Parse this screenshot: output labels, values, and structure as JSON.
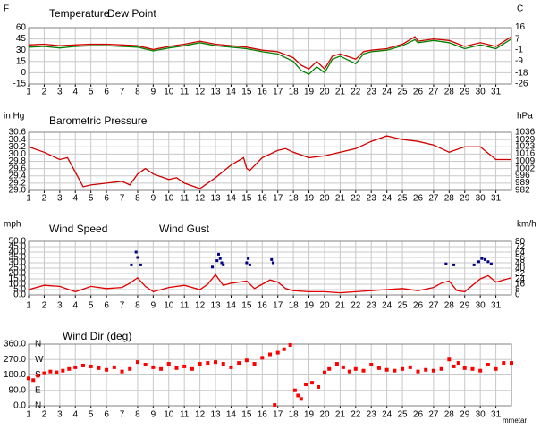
{
  "chart_data": [
    {
      "type": "line",
      "ylabel": "F",
      "y2label": "C",
      "xlim": [
        1,
        32
      ],
      "xticks": [
        1,
        2,
        3,
        4,
        5,
        6,
        7,
        8,
        9,
        10,
        11,
        12,
        13,
        14,
        15,
        16,
        17,
        18,
        19,
        20,
        21,
        22,
        23,
        24,
        25,
        26,
        27,
        28,
        29,
        30,
        31
      ],
      "ylim": [
        -15,
        60
      ],
      "yticks": [
        60,
        45,
        30,
        15,
        0,
        -15
      ],
      "y2lim": [
        -26.1,
        15.6
      ],
      "y2ticks": [
        16,
        7,
        -1,
        -9,
        -18,
        -26
      ],
      "grid": true,
      "series": [
        {
          "name": "Temperature",
          "color": "#d00000",
          "style": "line",
          "x": [
            1,
            2,
            3,
            4,
            5,
            6,
            7,
            8,
            9,
            10,
            11,
            12,
            13,
            14,
            15,
            16,
            17,
            18,
            18.5,
            19,
            19.5,
            20,
            20.5,
            21,
            22,
            22.5,
            23,
            24,
            25,
            25.8,
            26,
            27,
            28,
            29,
            30,
            31,
            32
          ],
          "values": [
            37,
            38,
            36,
            37,
            38,
            38,
            37,
            36,
            31,
            35,
            38,
            42,
            38,
            36,
            34,
            30,
            28,
            20,
            10,
            5,
            15,
            5,
            22,
            25,
            18,
            28,
            30,
            32,
            38,
            48,
            42,
            45,
            43,
            35,
            40,
            35,
            48
          ]
        },
        {
          "name": "Dew Point",
          "color": "#008000",
          "style": "line",
          "x": [
            1,
            2,
            3,
            4,
            5,
            6,
            7,
            8,
            9,
            10,
            11,
            12,
            13,
            14,
            15,
            16,
            17,
            18,
            18.5,
            19,
            19.5,
            20,
            20.5,
            21,
            22,
            22.5,
            23,
            24,
            25,
            25.8,
            26,
            27,
            28,
            29,
            30,
            31,
            32
          ],
          "values": [
            34,
            35,
            33,
            35,
            36,
            36,
            35,
            34,
            29,
            33,
            36,
            40,
            36,
            34,
            32,
            28,
            25,
            15,
            3,
            -2,
            8,
            0,
            18,
            22,
            12,
            25,
            28,
            30,
            36,
            44,
            40,
            43,
            40,
            32,
            37,
            32,
            45
          ]
        }
      ]
    },
    {
      "type": "line",
      "ylabel": "in Hg",
      "y2label": "hPa",
      "xlim": [
        1,
        32
      ],
      "xticks": [
        1,
        2,
        3,
        4,
        5,
        6,
        7,
        8,
        9,
        10,
        11,
        12,
        13,
        14,
        15,
        16,
        17,
        18,
        19,
        20,
        21,
        22,
        23,
        24,
        25,
        26,
        27,
        28,
        29,
        30,
        31
      ],
      "ylim": [
        29,
        30.6
      ],
      "yticks": [
        30.6,
        30.4,
        30.2,
        {
          "value": 30,
          "label": "30.0"
        },
        29.8,
        29.6,
        29.4,
        29.2,
        {
          "value": 29,
          "label": "29.0"
        }
      ],
      "y2lim": [
        982,
        1036
      ],
      "y2ticks": [
        1036,
        1029,
        1023,
        1016,
        1009,
        1002,
        996,
        989,
        982
      ],
      "grid": true,
      "series": [
        {
          "name": "Barometric Pressure",
          "color": "#d00000",
          "style": "line",
          "x": [
            1,
            2,
            3,
            3.5,
            4,
            4.5,
            5,
            6,
            7,
            7.5,
            8,
            8.5,
            9,
            10,
            10.5,
            11,
            12,
            13,
            14,
            14.8,
            15,
            15.2,
            16,
            17,
            17.5,
            18,
            19,
            20,
            21,
            22,
            23,
            24,
            24.5,
            25,
            26,
            27,
            28,
            29,
            30,
            31,
            32
          ],
          "values": [
            30.2,
            30.05,
            29.85,
            29.9,
            29.5,
            29.1,
            29.15,
            29.2,
            29.25,
            29.15,
            29.45,
            29.6,
            29.45,
            29.3,
            29.35,
            29.2,
            29.05,
            29.35,
            29.7,
            29.9,
            29.6,
            29.55,
            29.9,
            30.1,
            30.15,
            30.05,
            29.9,
            29.95,
            30.05,
            30.15,
            30.35,
            30.5,
            30.45,
            30.4,
            30.35,
            30.25,
            30.05,
            30.2,
            30.2,
            29.85,
            29.85
          ]
        }
      ]
    },
    {
      "type": "line",
      "ylabel": "mph",
      "y2label": "km/h",
      "xlim": [
        1,
        32
      ],
      "xticks": [
        1,
        2,
        3,
        4,
        5,
        6,
        7,
        8,
        9,
        10,
        11,
        12,
        13,
        14,
        15,
        16,
        17,
        18,
        19,
        20,
        21,
        22,
        23,
        24,
        25,
        26,
        27,
        28,
        29,
        30,
        31
      ],
      "ylim": [
        0,
        50
      ],
      "yticks": [
        {
          "value": 50,
          "label": "50.0"
        },
        {
          "value": 45,
          "label": "45.0"
        },
        {
          "value": 40,
          "label": "40.0"
        },
        {
          "value": 35,
          "label": "35.0"
        },
        {
          "value": 30,
          "label": "30.0"
        },
        {
          "value": 25,
          "label": "25.0"
        },
        {
          "value": 20,
          "label": "20.0"
        },
        {
          "value": 15,
          "label": "15.0"
        },
        {
          "value": 10,
          "label": "10.0"
        },
        {
          "value": 5,
          "label": "5.0"
        },
        {
          "value": 0,
          "label": "0.0"
        }
      ],
      "y2lim": [
        0,
        80.5
      ],
      "y2ticks": [
        80,
        72,
        64,
        56,
        48,
        40,
        32,
        24,
        16,
        8,
        0
      ],
      "grid": true,
      "series": [
        {
          "name": "Wind Speed",
          "color": "#e00000",
          "style": "line",
          "x": [
            1,
            2,
            3,
            4,
            5,
            6,
            7,
            7.5,
            8,
            8.5,
            9,
            10,
            11,
            12,
            12.5,
            13,
            13.5,
            14,
            15,
            15.5,
            16,
            16.5,
            17,
            17.5,
            18,
            19,
            20,
            21,
            22,
            23,
            24,
            25,
            26,
            27,
            27.5,
            28,
            28.5,
            29,
            30,
            30.5,
            31,
            32
          ],
          "values": [
            5,
            9,
            8,
            3,
            8,
            6,
            7,
            11,
            16,
            8,
            3,
            7,
            9,
            5,
            10,
            19,
            9,
            11,
            13,
            6,
            10,
            14,
            12,
            6,
            4,
            3,
            3,
            2,
            3,
            4,
            5,
            6,
            4,
            7,
            11,
            13,
            4,
            3,
            15,
            18,
            12,
            16
          ]
        },
        {
          "name": "Wind Gust",
          "color": "#000080",
          "style": "points",
          "x": [
            7.6,
            7.9,
            8.0,
            8.2,
            12.8,
            13.1,
            13.2,
            13.3,
            13.4,
            13.5,
            15.0,
            15.1,
            15.2,
            16.6,
            16.7,
            27.8,
            28.3,
            29.6,
            29.9,
            30.1,
            30.3,
            30.5,
            30.7
          ],
          "values": [
            28,
            40,
            35,
            28,
            26,
            32,
            38,
            34,
            30,
            28,
            30,
            34,
            28,
            33,
            30,
            29,
            28,
            28,
            31,
            34,
            33,
            31,
            29
          ]
        }
      ]
    },
    {
      "type": "scatter",
      "footer": "mmetar",
      "xlim": [
        1,
        32
      ],
      "xticks": [
        1,
        2,
        3,
        4,
        5,
        6,
        7,
        8,
        9,
        10,
        11,
        12,
        13,
        14,
        15,
        16,
        17,
        18,
        19,
        20,
        21,
        22,
        23,
        24,
        25,
        26,
        27,
        28,
        29,
        30,
        31
      ],
      "ylim": [
        0,
        360
      ],
      "yticks": [
        {
          "value": 360,
          "label": "360.0"
        },
        {
          "value": 270,
          "label": "270.0"
        },
        {
          "value": 180,
          "label": "180.0"
        },
        {
          "value": 90,
          "label": "90.0"
        },
        {
          "value": 0,
          "label": "0.0"
        }
      ],
      "compass": [
        {
          "value": 360,
          "label": "N"
        },
        {
          "value": 270,
          "label": "W"
        },
        {
          "value": 180,
          "label": "S"
        },
        {
          "value": 90,
          "label": "E"
        },
        {
          "value": 0,
          "label": "N"
        }
      ],
      "grid": true,
      "series": [
        {
          "name": "Wind Dir (deg)",
          "color": "#ff0000",
          "style": "points",
          "x": [
            1,
            1.3,
            1.6,
            2,
            2.4,
            2.8,
            3.2,
            3.6,
            4,
            4.5,
            5,
            5.5,
            6,
            6.5,
            7,
            7.5,
            8,
            8.5,
            9,
            9.5,
            10,
            10.5,
            11,
            11.5,
            12,
            12.5,
            13,
            13.5,
            14,
            14.5,
            15,
            15.5,
            16,
            16.5,
            16.8,
            17,
            17.4,
            17.8,
            18.1,
            18.3,
            18.5,
            18.8,
            19.2,
            19.6,
            20,
            20.3,
            20.8,
            21.2,
            21.6,
            22,
            22.5,
            23,
            23.5,
            24,
            24.5,
            25,
            25.5,
            26,
            26.5,
            27,
            27.5,
            28,
            28.3,
            28.6,
            29,
            29.5,
            30,
            30.5,
            31,
            31.5,
            32
          ],
          "values": [
            160,
            150,
            175,
            190,
            200,
            195,
            205,
            215,
            225,
            235,
            230,
            220,
            210,
            225,
            200,
            215,
            255,
            240,
            225,
            215,
            245,
            220,
            230,
            215,
            245,
            250,
            255,
            245,
            225,
            250,
            265,
            245,
            280,
            300,
            5,
            310,
            330,
            355,
            90,
            60,
            40,
            125,
            135,
            110,
            195,
            215,
            245,
            225,
            200,
            215,
            205,
            240,
            220,
            210,
            205,
            215,
            225,
            200,
            210,
            205,
            215,
            270,
            230,
            250,
            220,
            215,
            205,
            240,
            215,
            250,
            250
          ]
        }
      ]
    }
  ]
}
